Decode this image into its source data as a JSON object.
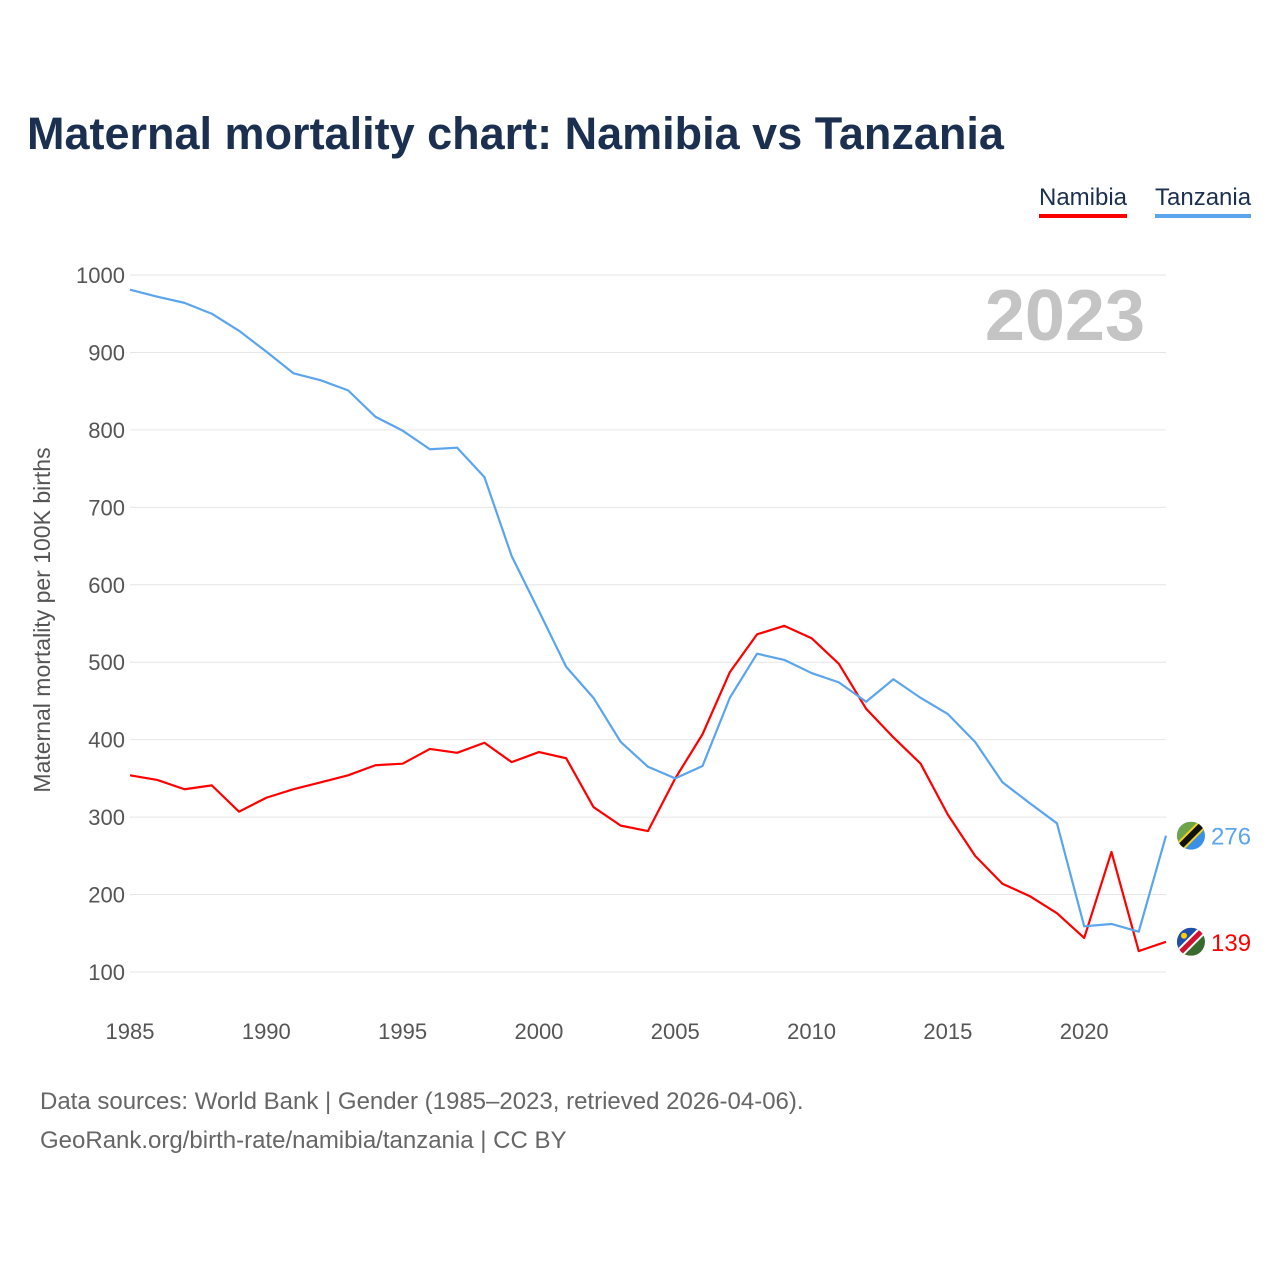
{
  "chart_data": {
    "type": "line",
    "title": "Maternal mortality chart: Namibia vs Tanzania",
    "xlabel": "",
    "ylabel": "Maternal mortality per 100K births",
    "year_label": "2023",
    "xlim": [
      1985,
      2023
    ],
    "ylim": [
      100,
      1000
    ],
    "yticks": [
      100,
      200,
      300,
      400,
      500,
      600,
      700,
      800,
      900,
      1000
    ],
    "xticks": [
      1985,
      1990,
      1995,
      2000,
      2005,
      2010,
      2015,
      2020
    ],
    "grid": true,
    "legend_position": "top-right",
    "x": [
      1985,
      1986,
      1987,
      1988,
      1989,
      1990,
      1991,
      1992,
      1993,
      1994,
      1995,
      1996,
      1997,
      1998,
      1999,
      2000,
      2001,
      2002,
      2003,
      2004,
      2005,
      2006,
      2007,
      2008,
      2009,
      2010,
      2011,
      2012,
      2013,
      2014,
      2015,
      2016,
      2017,
      2018,
      2019,
      2020,
      2021,
      2022,
      2023
    ],
    "series": [
      {
        "name": "Namibia",
        "color": "#ff0000",
        "end_label": "139",
        "values": [
          354,
          348,
          336,
          341,
          307,
          325,
          336,
          345,
          354,
          367,
          369,
          388,
          383,
          396,
          371,
          384,
          376,
          313,
          289,
          282,
          350,
          407,
          487,
          536,
          547,
          531,
          498,
          440,
          403,
          369,
          303,
          250,
          214,
          198,
          176,
          144,
          255,
          127,
          139
        ]
      },
      {
        "name": "Tanzania",
        "color": "#5aa5ee",
        "end_label": "276",
        "values": [
          981,
          972,
          964,
          950,
          928,
          901,
          873,
          864,
          851,
          817,
          799,
          775,
          777,
          739,
          637,
          566,
          494,
          454,
          397,
          365,
          350,
          366,
          454,
          511,
          503,
          486,
          474,
          449,
          478,
          454,
          433,
          397,
          345,
          318,
          292,
          159,
          162,
          152,
          276
        ]
      }
    ]
  },
  "footer": {
    "source": "Data sources: World Bank | Gender (1985–2023, retrieved 2026-04-06).",
    "credit": "GeoRank.org/birth-rate/namibia/tanzania | CC BY"
  }
}
